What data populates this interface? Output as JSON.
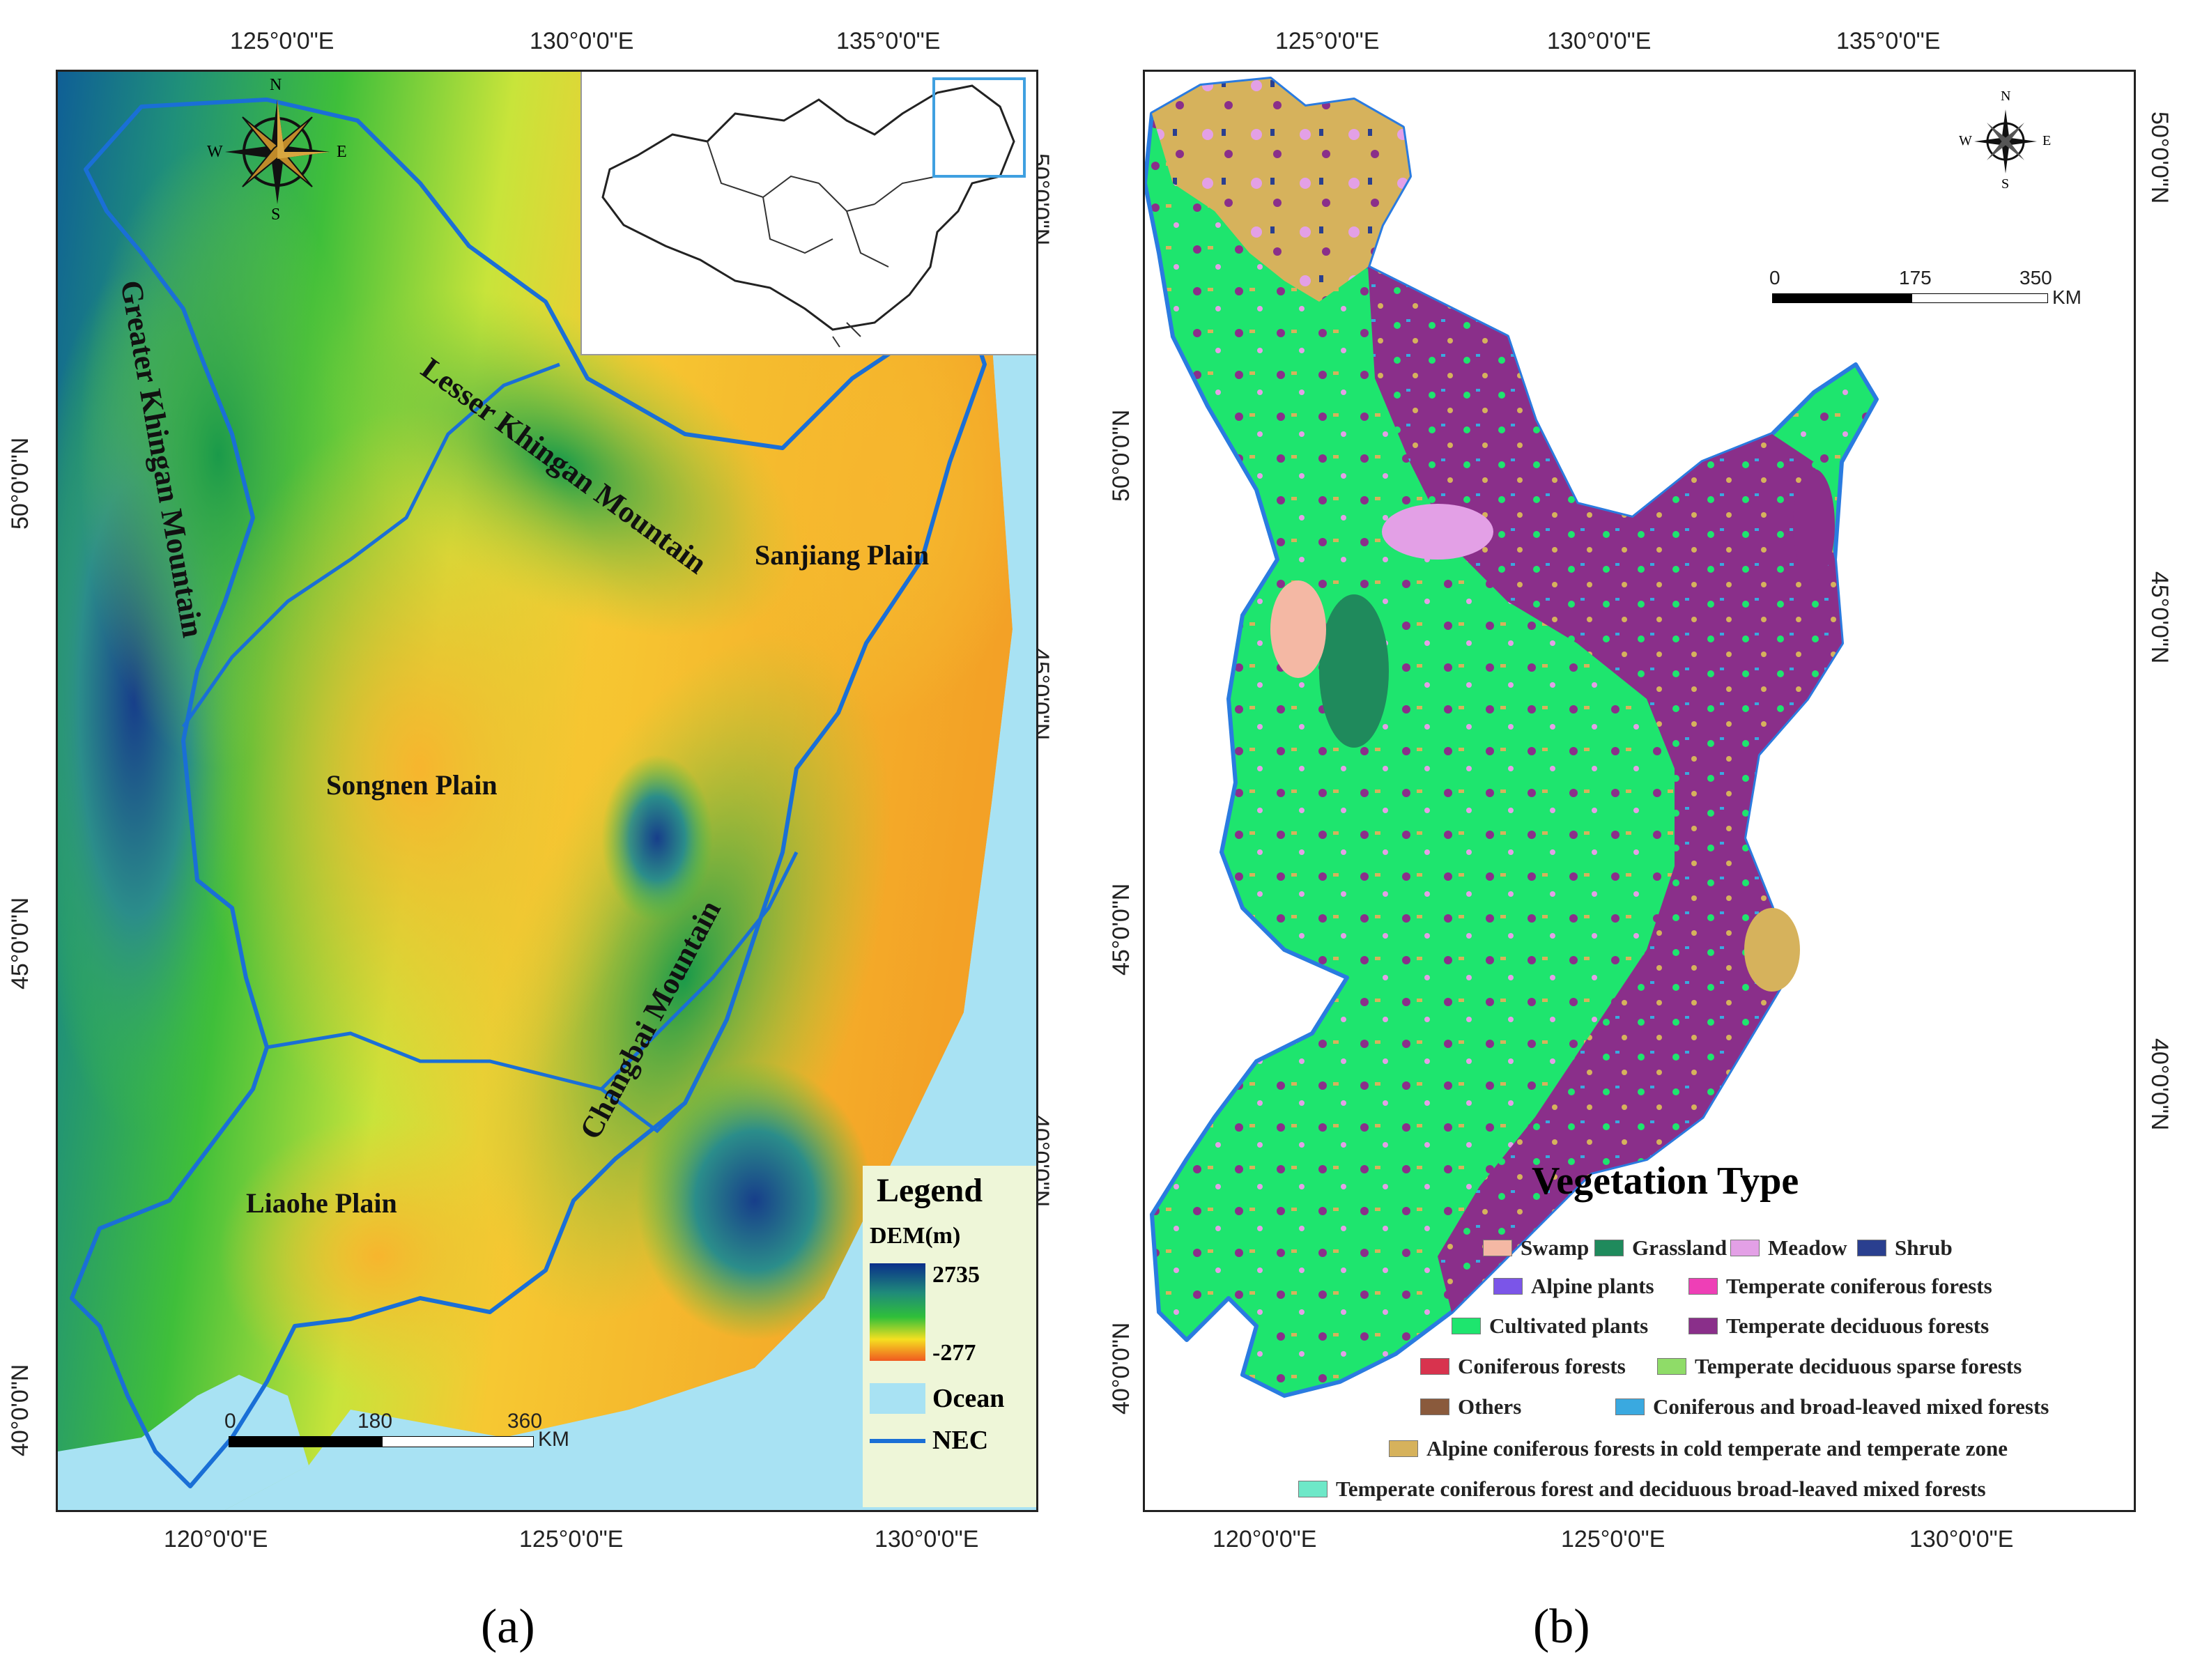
{
  "panel_a": {
    "caption": "(a)",
    "top_lon_labels": [
      "125°0'0\"E",
      "130°0'0\"E",
      "135°0'0\"E"
    ],
    "bottom_lon_labels": [
      "120°0'0\"E",
      "125°0'0\"E",
      "130°0'0\"E"
    ],
    "left_lat_labels": [
      "50°0'0\"N",
      "45°0'0\"N",
      "40°0'0\"N"
    ],
    "right_lat_labels": [
      "50°0'0\"N",
      "45°0'0\"N",
      "40°0'0\"N"
    ],
    "region_labels": {
      "greater_khingan": "Greater Khingan Mountain",
      "lesser_khingan": "Lesser Khingan Mountain",
      "sanjiang": "Sanjiang Plain",
      "songnen": "Songnen Plain",
      "changbai": "Changbai Mountain",
      "liaohe": "Liaohe Plain"
    },
    "compass": {
      "n": "N",
      "s": "S",
      "e": "E",
      "w": "W"
    },
    "legend": {
      "title": "Legend",
      "dem_label": "DEM(m)",
      "dem_max": "2735",
      "dem_min": "-277",
      "ocean_label": "Ocean",
      "nec_label": "NEC"
    },
    "scale": {
      "t0": "0",
      "t1": "180",
      "t2": "360",
      "unit": "KM"
    }
  },
  "panel_b": {
    "caption": "(b)",
    "top_lon_labels": [
      "125°0'0\"E",
      "130°0'0\"E",
      "135°0'0\"E"
    ],
    "bottom_lon_labels": [
      "120°0'0\"E",
      "125°0'0\"E",
      "130°0'0\"E"
    ],
    "left_lat_labels": [
      "50°0'0\"N",
      "45°0'0\"N",
      "40°0'0\"N"
    ],
    "right_lat_labels": [
      "50°0'0\"N",
      "45°0'0\"N",
      "40°0'0\"N"
    ],
    "compass": {
      "n": "N",
      "s": "S",
      "e": "E",
      "w": "W"
    },
    "scale": {
      "t0": "0",
      "t1": "175",
      "t2": "350",
      "unit": "KM"
    },
    "legend_title": "Vegetation Type",
    "legend_items": [
      {
        "label": "Swamp",
        "color": "#f4b8a4"
      },
      {
        "label": "Grassland",
        "color": "#1f8a5c"
      },
      {
        "label": "Meadow",
        "color": "#e3a0e6"
      },
      {
        "label": "Shrub",
        "color": "#2a3f8f"
      },
      {
        "label": "Alpine plants",
        "color": "#7b55e8"
      },
      {
        "label": "Temperate coniferous forests",
        "color": "#ee3fb6"
      },
      {
        "label": "Cultivated plants",
        "color": "#1ee56e"
      },
      {
        "label": "Temperate deciduous forests",
        "color": "#8a2f8a"
      },
      {
        "label": "Coniferous forests",
        "color": "#d8334e"
      },
      {
        "label": "Temperate deciduous sparse forests",
        "color": "#8fdc68"
      },
      {
        "label": "Others",
        "color": "#8a5a3c"
      },
      {
        "label": "Coniferous and broad-leaved mixed forests",
        "color": "#3aa9e0"
      },
      {
        "label": "Alpine coniferous forests in cold temperate and temperate zone",
        "color": "#d6b25c"
      },
      {
        "label": "Temperate coniferous forest and deciduous broad-leaved mixed forests",
        "color": "#6ee8c8"
      }
    ]
  }
}
